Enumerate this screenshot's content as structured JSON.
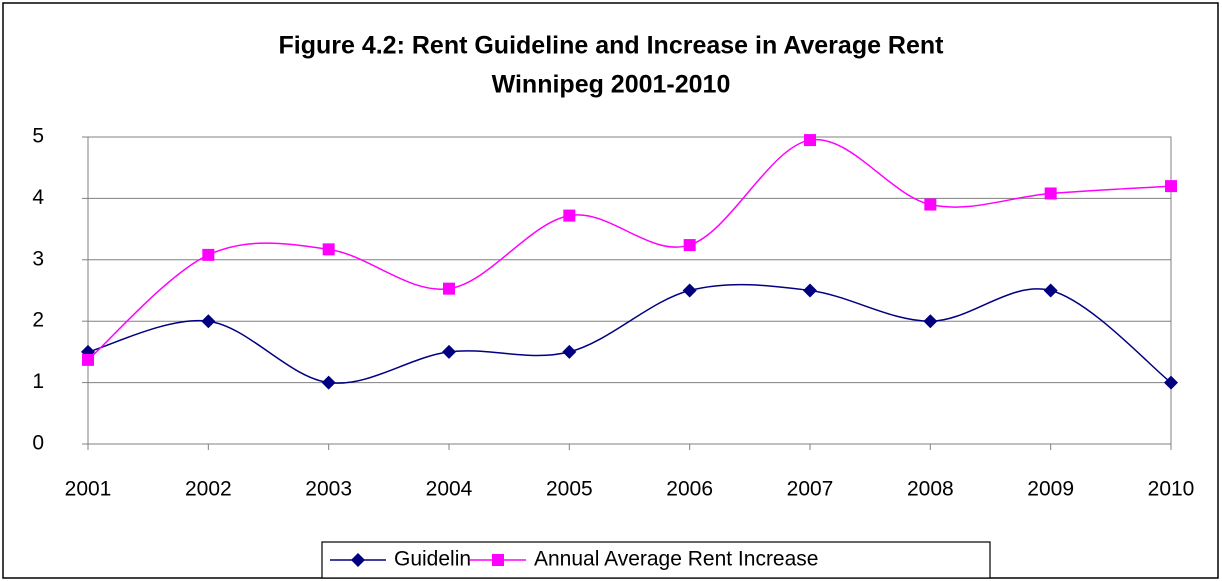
{
  "chart_data": {
    "type": "line",
    "title": [
      "Figure 4.2: Rent Guideline and Increase in Average Rent",
      "Winnipeg 2001-2010"
    ],
    "categories": [
      "2001",
      "2002",
      "2003",
      "2004",
      "2005",
      "2006",
      "2007",
      "2008",
      "2009",
      "2010"
    ],
    "series": [
      {
        "name": "Guidelin",
        "color": "#000080",
        "marker": "diamond",
        "values": [
          1.5,
          2.0,
          1.0,
          1.5,
          1.5,
          2.5,
          2.5,
          2.0,
          2.5,
          1.0
        ]
      },
      {
        "name": "Annual Average Rent Increase",
        "color": "#ff00ff",
        "marker": "square",
        "values": [
          1.37,
          3.08,
          3.17,
          2.53,
          3.72,
          3.24,
          4.95,
          3.9,
          4.08,
          4.2
        ]
      }
    ],
    "ylim": [
      0,
      5
    ],
    "yticks": [
      0,
      1,
      2,
      3,
      4,
      5
    ],
    "grid": true,
    "smooth": true,
    "legend": "bottom"
  }
}
